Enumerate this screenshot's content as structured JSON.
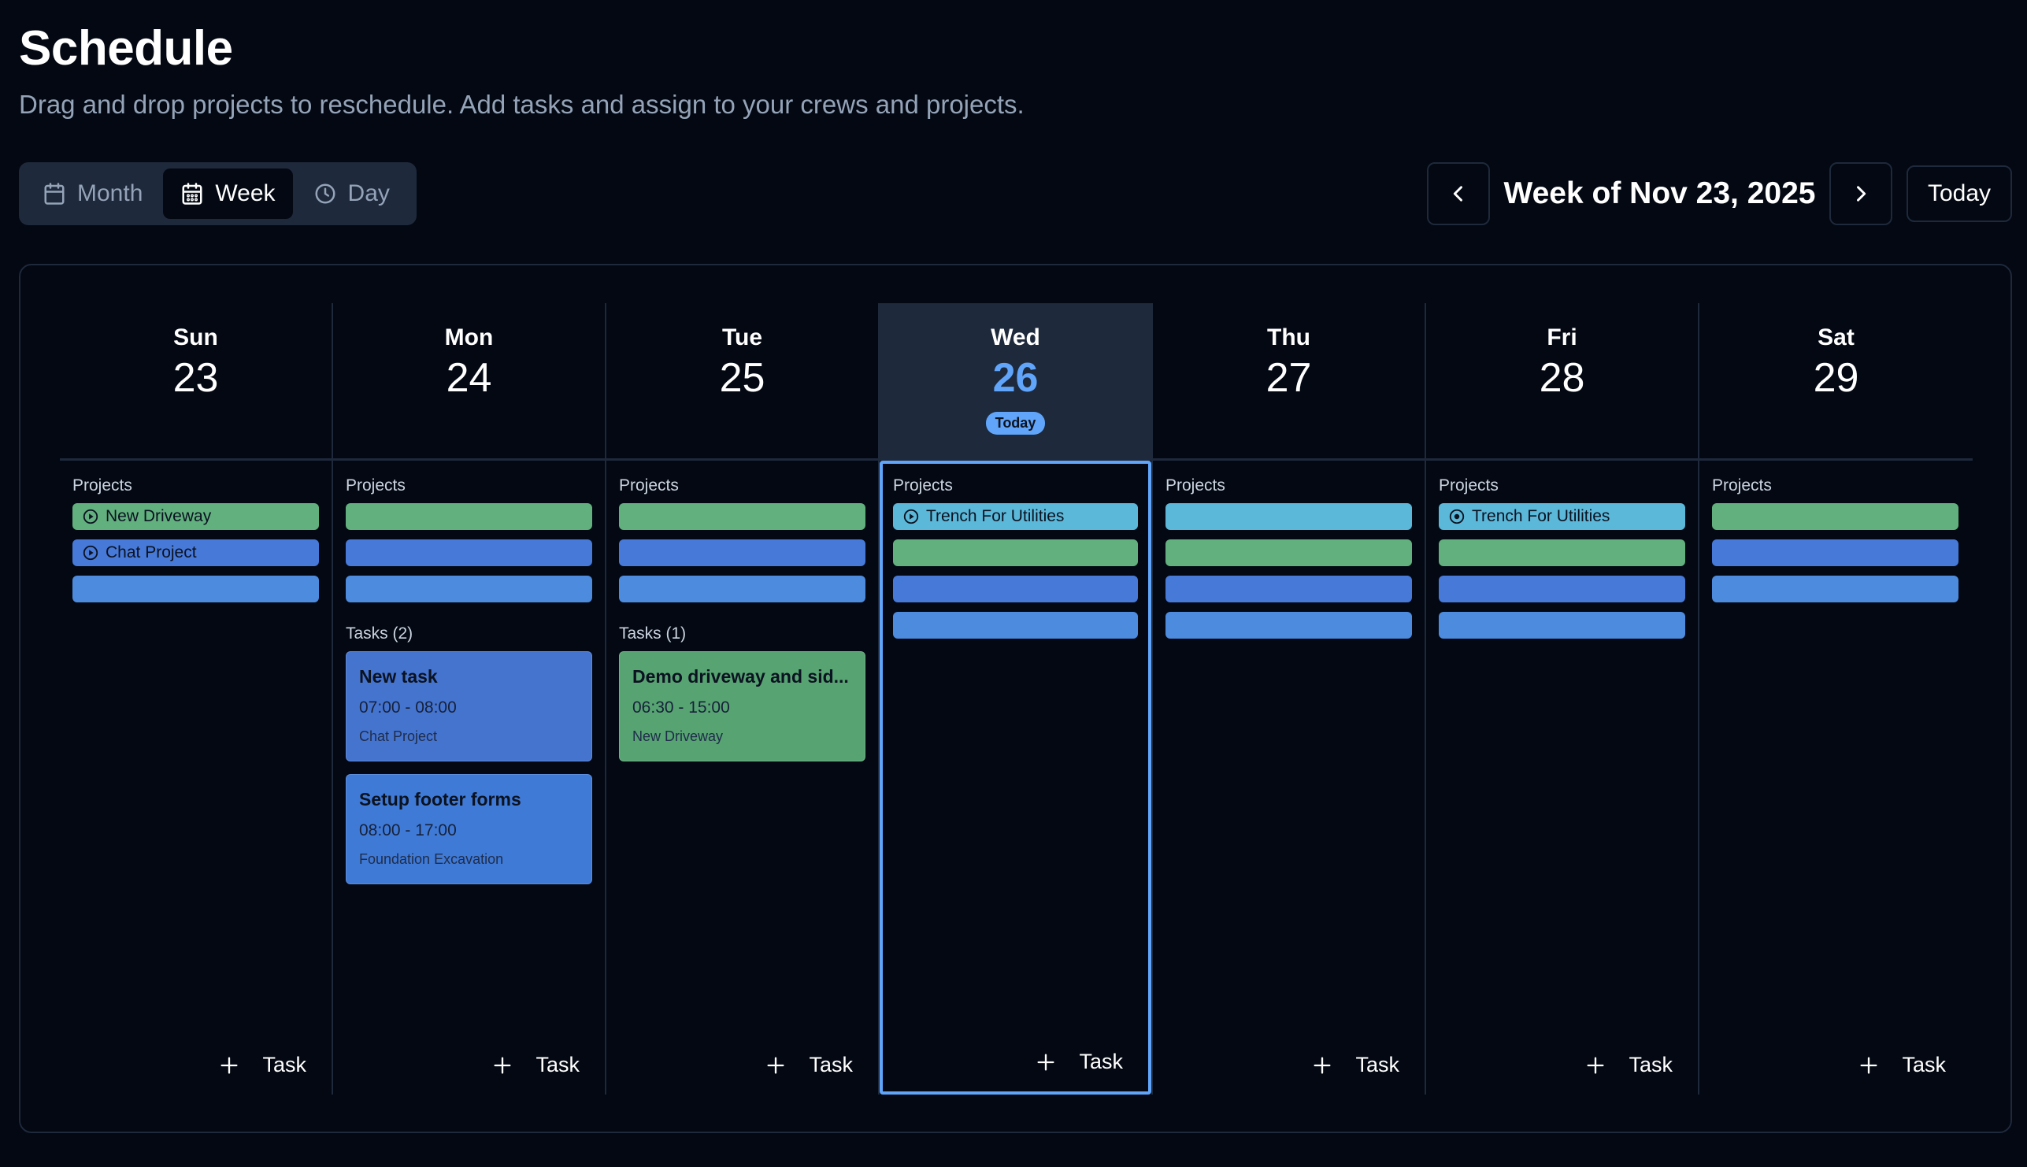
{
  "header": {
    "title": "Schedule",
    "subtitle": "Drag and drop projects to reschedule. Add tasks and assign to your crews and projects."
  },
  "views": {
    "month": "Month",
    "week": "Week",
    "day": "Day",
    "active": "week"
  },
  "nav": {
    "week_label": "Week of Nov 23, 2025",
    "today_label": "Today"
  },
  "labels": {
    "projects": "Projects",
    "add_task": "Task",
    "today_badge": "Today"
  },
  "colors": {
    "background": "#030812",
    "accent": "#60a5fa",
    "green": "#62b07e",
    "blue": "#4779d8",
    "sky": "#5bb8d9"
  },
  "days": [
    {
      "name": "Sun",
      "number": "23",
      "today": false,
      "projects": [
        {
          "label": "New Driveway",
          "color": "green",
          "icon": "play-circle-icon"
        },
        {
          "label": "Chat Project",
          "color": "blue",
          "icon": "play-circle-icon"
        },
        {
          "label": "",
          "color": "blue2",
          "icon": ""
        }
      ],
      "tasks_label": "",
      "tasks": []
    },
    {
      "name": "Mon",
      "number": "24",
      "today": false,
      "projects": [
        {
          "label": "",
          "color": "green",
          "icon": ""
        },
        {
          "label": "",
          "color": "blue",
          "icon": ""
        },
        {
          "label": "",
          "color": "blue2",
          "icon": ""
        }
      ],
      "tasks_label": "Tasks (2)",
      "tasks": [
        {
          "title": "New task",
          "time": "07:00 - 08:00",
          "project": "Chat Project",
          "color": "blue"
        },
        {
          "title": "Setup footer forms",
          "time": "08:00 - 17:00",
          "project": "Foundation Excavation",
          "color": "blue2"
        }
      ]
    },
    {
      "name": "Tue",
      "number": "25",
      "today": false,
      "projects": [
        {
          "label": "",
          "color": "green",
          "icon": ""
        },
        {
          "label": "",
          "color": "blue",
          "icon": ""
        },
        {
          "label": "",
          "color": "blue2",
          "icon": ""
        }
      ],
      "tasks_label": "Tasks (1)",
      "tasks": [
        {
          "title": "Demo driveway and sid...",
          "time": "06:30 - 15:00",
          "project": "New Driveway",
          "color": "green"
        }
      ]
    },
    {
      "name": "Wed",
      "number": "26",
      "today": true,
      "projects": [
        {
          "label": "Trench For Utilities",
          "color": "sky",
          "icon": "play-circle-icon"
        },
        {
          "label": "",
          "color": "green",
          "icon": ""
        },
        {
          "label": "",
          "color": "blue",
          "icon": ""
        },
        {
          "label": "",
          "color": "blue2",
          "icon": ""
        }
      ],
      "tasks_label": "",
      "tasks": []
    },
    {
      "name": "Thu",
      "number": "27",
      "today": false,
      "projects": [
        {
          "label": "",
          "color": "sky",
          "icon": ""
        },
        {
          "label": "",
          "color": "green",
          "icon": ""
        },
        {
          "label": "",
          "color": "blue",
          "icon": ""
        },
        {
          "label": "",
          "color": "blue2",
          "icon": ""
        }
      ],
      "tasks_label": "",
      "tasks": []
    },
    {
      "name": "Fri",
      "number": "28",
      "today": false,
      "projects": [
        {
          "label": "Trench For Utilities",
          "color": "sky",
          "icon": "target-circle-icon"
        },
        {
          "label": "",
          "color": "green",
          "icon": ""
        },
        {
          "label": "",
          "color": "blue",
          "icon": ""
        },
        {
          "label": "",
          "color": "blue2",
          "icon": ""
        }
      ],
      "tasks_label": "",
      "tasks": []
    },
    {
      "name": "Sat",
      "number": "29",
      "today": false,
      "projects": [
        {
          "label": "",
          "color": "green",
          "icon": ""
        },
        {
          "label": "",
          "color": "blue",
          "icon": ""
        },
        {
          "label": "",
          "color": "blue2",
          "icon": ""
        }
      ],
      "tasks_label": "",
      "tasks": []
    }
  ]
}
